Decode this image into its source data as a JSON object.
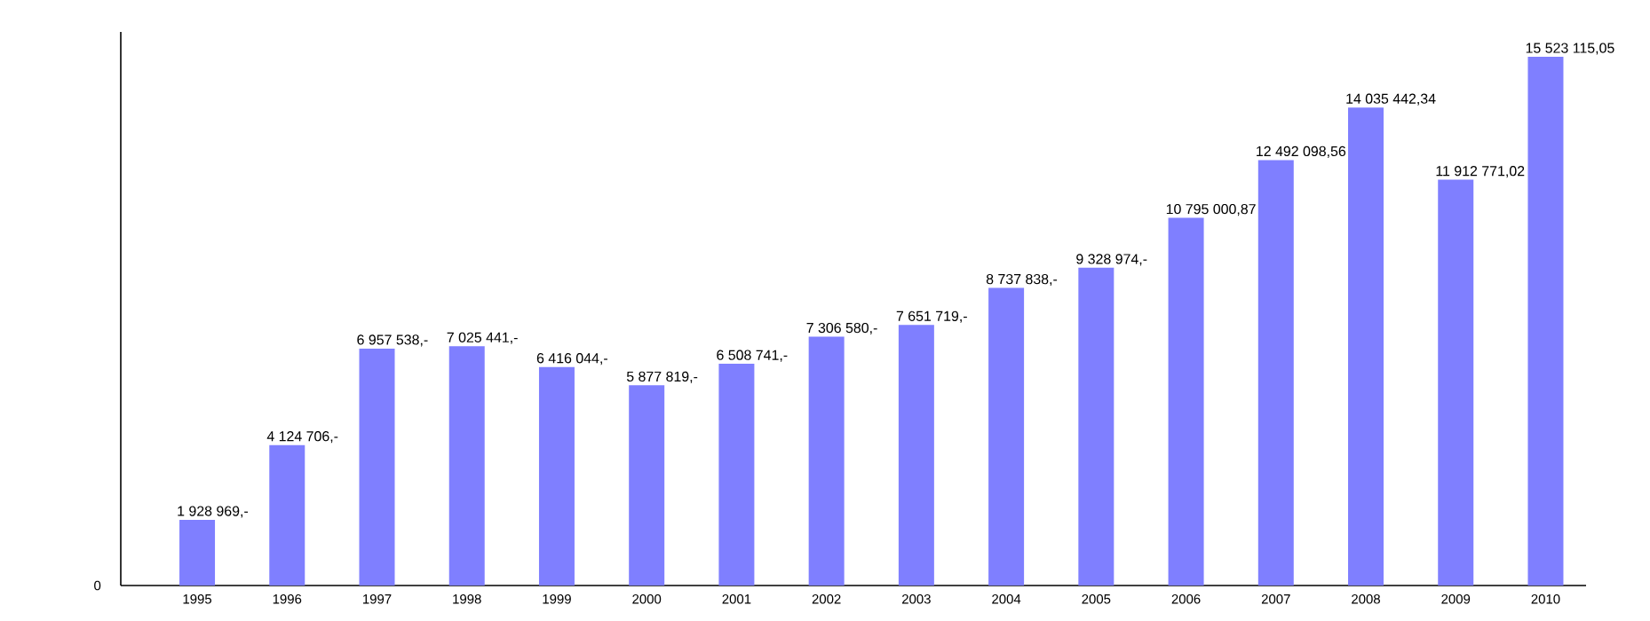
{
  "chart_data": {
    "type": "bar",
    "categories": [
      "1995",
      "1996",
      "1997",
      "1998",
      "1999",
      "2000",
      "2001",
      "2002",
      "2003",
      "2004",
      "2005",
      "2006",
      "2007",
      "2008",
      "2009",
      "2010"
    ],
    "values": [
      1928969,
      4124706,
      6957538,
      7025441,
      6416044,
      5877819,
      6508741,
      7306580,
      7651719,
      8737838,
      9328974,
      10795000.87,
      12492098.56,
      14035442.34,
      11912771.02,
      15523115.05
    ],
    "value_labels": [
      "1 928 969,-",
      "4 124 706,-",
      "6 957 538,-",
      "7 025 441,-",
      "6 416 044,-",
      "5 877 819,-",
      "6 508 741,-",
      "7 306 580,-",
      "7 651 719,-",
      "8 737 838,-",
      "9 328 974,-",
      "10 795 000,87",
      "12 492 098,56",
      "14 035 442,34",
      "11 912 771,02",
      "15 523 115,05"
    ],
    "color": "#7f7fff",
    "annotations": [
      "0"
    ],
    "grid": false
  }
}
